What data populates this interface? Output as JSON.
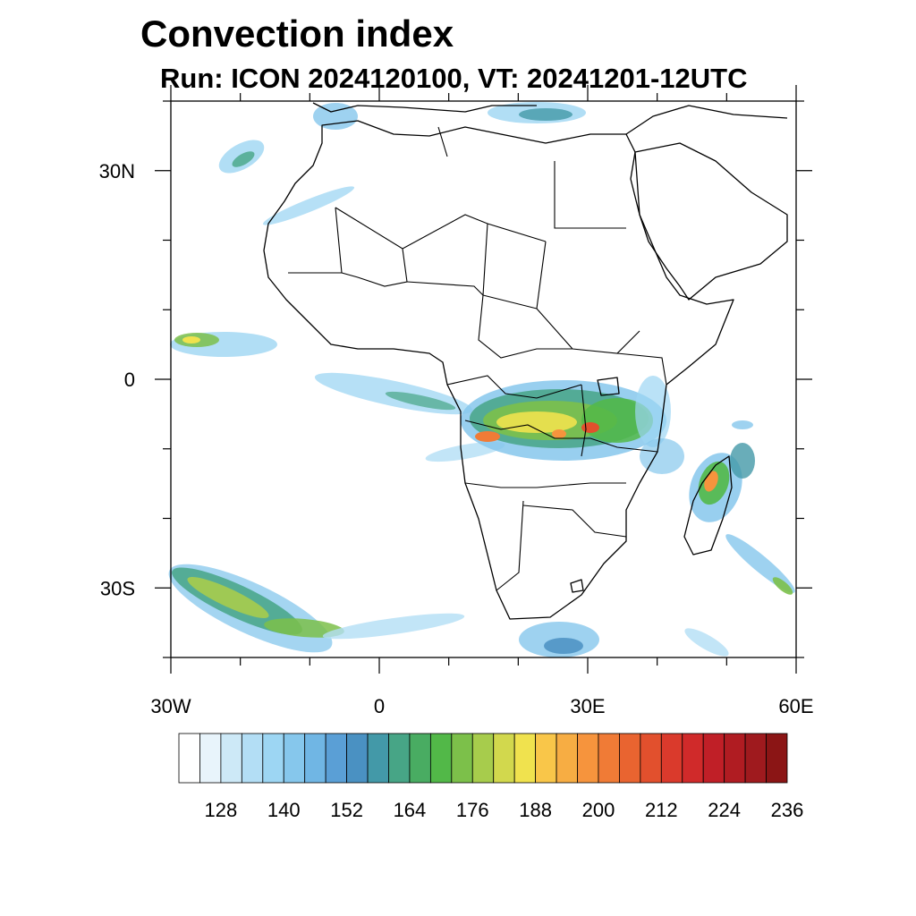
{
  "title": "Convection index",
  "subtitle": "Run: ICON 2024120100,  VT: 20241201-12UTC",
  "map": {
    "region": "Africa",
    "lon_range": [
      -30,
      60
    ],
    "lat_range": [
      -40,
      40
    ],
    "x_ticks": [
      {
        "lon": -30,
        "label": "30W"
      },
      {
        "lon": 0,
        "label": "0"
      },
      {
        "lon": 30,
        "label": "30E"
      },
      {
        "lon": 60,
        "label": "60E"
      }
    ],
    "y_ticks": [
      {
        "lat": 30,
        "label": "30N"
      },
      {
        "lat": 0,
        "label": "0"
      },
      {
        "lat": -30,
        "label": "30S"
      }
    ]
  },
  "colorbar": {
    "colors": [
      "#ffffff",
      "#e8f4fb",
      "#cde9f7",
      "#b3def5",
      "#9dd6f3",
      "#86c7ec",
      "#70b6e4",
      "#5a9fd6",
      "#4a91c2",
      "#4399a8",
      "#47a586",
      "#49ac62",
      "#52b848",
      "#7cc04a",
      "#a7cc4c",
      "#d2d84d",
      "#f0e24e",
      "#f9c649",
      "#f7ad43",
      "#f6943d",
      "#f07b36",
      "#e96430",
      "#e2502d",
      "#da3a2c",
      "#d02a2a",
      "#c01f27",
      "#b01c22",
      "#9f1a1e",
      "#8b1515"
    ],
    "labels": [
      "128",
      "140",
      "152",
      "164",
      "176",
      "188",
      "200",
      "212",
      "224",
      "236"
    ]
  }
}
